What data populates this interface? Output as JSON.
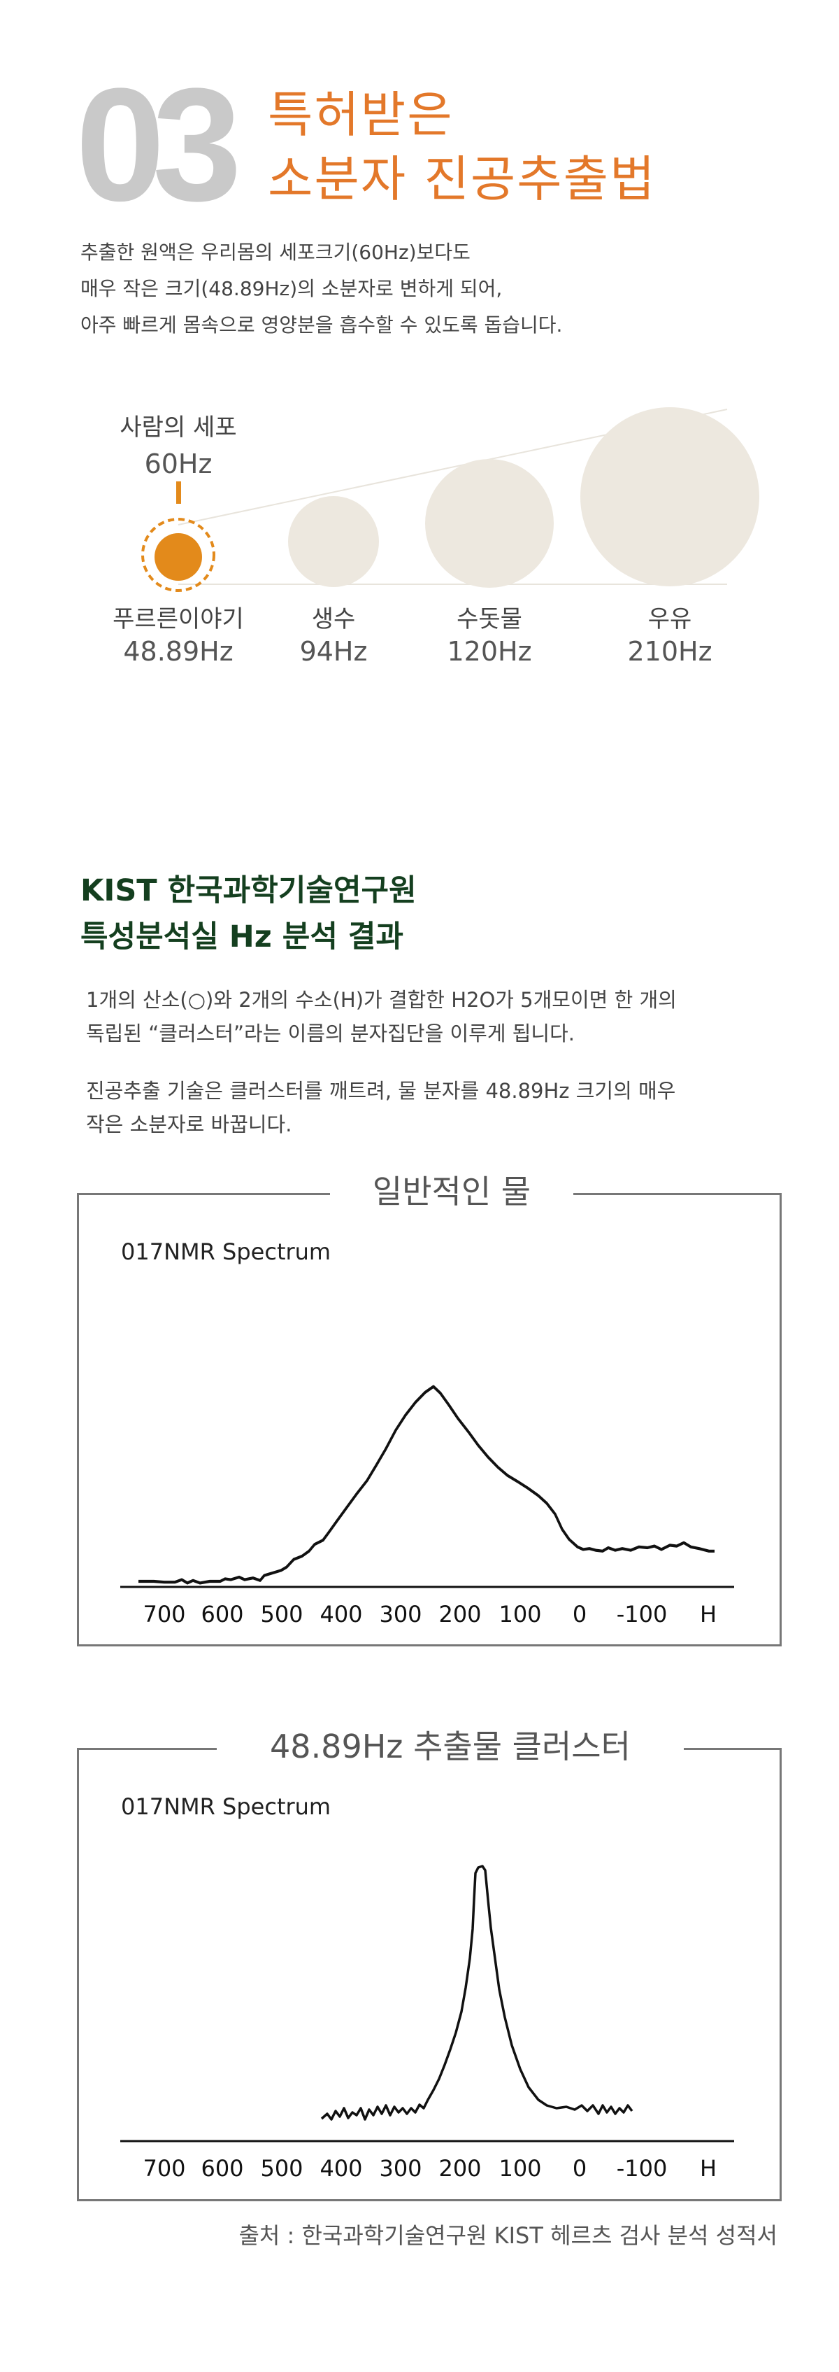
{
  "header": {
    "number": "03",
    "title_line1": "특허받은",
    "title_line2": "소분자 진공추출법",
    "intro_line1": "추출한 원액은 우리몸의 세포크기(60Hz)보다도",
    "intro_line2": "매우 작은 크기(48.89Hz)의 소분자로 변하게 되어,",
    "intro_line3": "아주 빠르게 몸속으로 영양분을 흡수할 수 있도록 돕습니다."
  },
  "cell": {
    "name": "사람의 세포",
    "hz": "60Hz"
  },
  "circles": [
    {
      "name": "푸르른이야기",
      "hz": "48.89Hz"
    },
    {
      "name": "생수",
      "hz": "94Hz"
    },
    {
      "name": "수돗물",
      "hz": "120Hz"
    },
    {
      "name": "우유",
      "hz": "210Hz"
    }
  ],
  "colors": {
    "accent": "#e3782a",
    "orange_dot": "#e38a1b",
    "circle_fill": "#ede8df",
    "heading_green": "#143f1f",
    "number_gray": "#c9c9c9"
  },
  "kist": {
    "title_line1": "KIST 한국과학기술연구원",
    "title_line2": "특성분석실 Hz 분석 결과",
    "p1_line1": "1개의 산소(○)와 2개의 수소(H)가 결합한 H2O가 5개모이면 한 개의",
    "p1_line2": "독립된 “클러스터”라는 이름의 분자집단을 이루게 됩니다.",
    "p2_line1": "진공추출 기술은 클러스터를 깨트려, 물 분자를 48.89Hz 크기의 매우",
    "p2_line2": "작은 소분자로 바꿉니다."
  },
  "spectra": [
    {
      "title": "일반적인 물",
      "label": "017NMR Spectrum",
      "ticks": [
        "700",
        "600",
        "500",
        "400",
        "300",
        "200",
        "100",
        "0",
        "-100",
        "H"
      ]
    },
    {
      "title": "48.89Hz 추출물 클러스터",
      "label": "017NMR Spectrum",
      "ticks": [
        "700",
        "600",
        "500",
        "400",
        "300",
        "200",
        "100",
        "0",
        "-100",
        "H"
      ]
    }
  ],
  "source": "출처 : 한국과학기술연구원 KIST 헤르츠 검사 분석 성적서"
}
